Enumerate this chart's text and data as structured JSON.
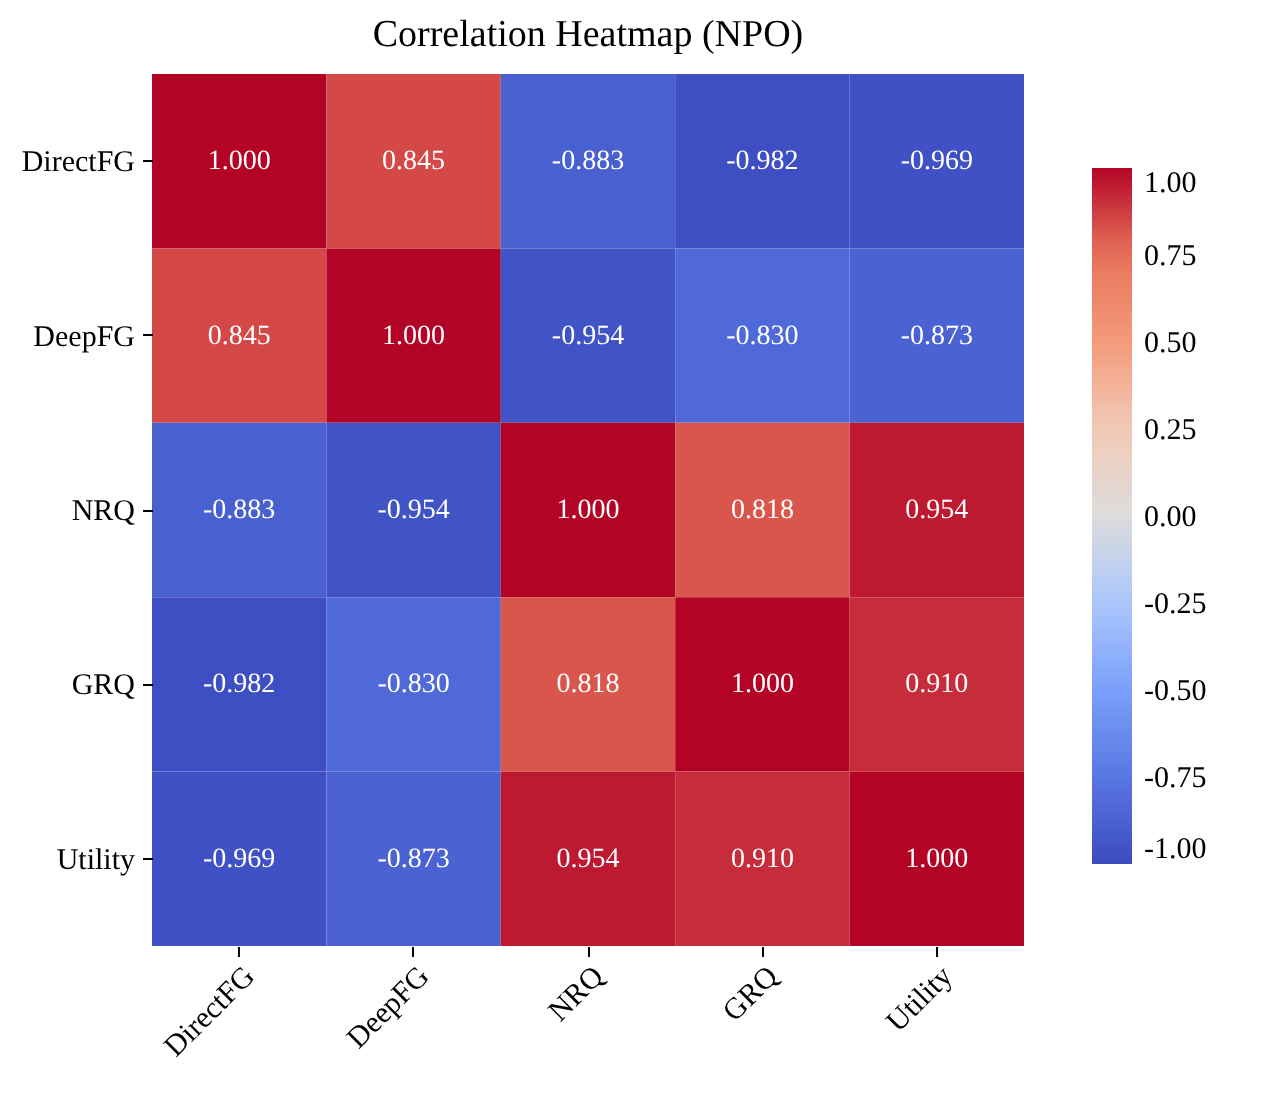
{
  "chart_data": {
    "type": "heatmap",
    "title": "Correlation Heatmap (NPO)",
    "categories": [
      "DirectFG",
      "DeepFG",
      "NRQ",
      "GRQ",
      "Utility"
    ],
    "y_categories": [
      "DirectFG",
      "DeepFG",
      "NRQ",
      "GRQ",
      "Utility"
    ],
    "cells": [
      [
        1.0,
        0.845,
        -0.883,
        -0.982,
        -0.969
      ],
      [
        0.845,
        1.0,
        -0.954,
        -0.83,
        -0.873
      ],
      [
        -0.883,
        -0.954,
        1.0,
        0.818,
        0.954
      ],
      [
        -0.982,
        -0.83,
        0.818,
        1.0,
        0.91
      ],
      [
        -0.969,
        -0.873,
        0.954,
        0.91,
        1.0
      ]
    ],
    "cell_labels": [
      [
        "1.000",
        "0.845",
        "-0.883",
        "-0.982",
        "-0.969"
      ],
      [
        "0.845",
        "1.000",
        "-0.954",
        "-0.830",
        "-0.873"
      ],
      [
        "-0.883",
        "-0.954",
        "1.000",
        "0.818",
        "0.954"
      ],
      [
        "-0.982",
        "-0.830",
        "0.818",
        "1.000",
        "0.910"
      ],
      [
        "-0.969",
        "-0.873",
        "0.954",
        "0.910",
        "1.000"
      ]
    ],
    "clim": [
      -1,
      1
    ],
    "cticks": [
      {
        "value": -1,
        "label": "-1.00"
      },
      {
        "value": -0.75,
        "label": "-0.75"
      },
      {
        "value": -0.5,
        "label": "-0.50"
      },
      {
        "value": -0.25,
        "label": "-0.25"
      },
      {
        "value": 0,
        "label": "0.00"
      },
      {
        "value": 0.25,
        "label": "0.25"
      },
      {
        "value": 0.5,
        "label": "0.50"
      },
      {
        "value": 0.75,
        "label": "0.75"
      },
      {
        "value": 1,
        "label": "1.00"
      }
    ]
  }
}
